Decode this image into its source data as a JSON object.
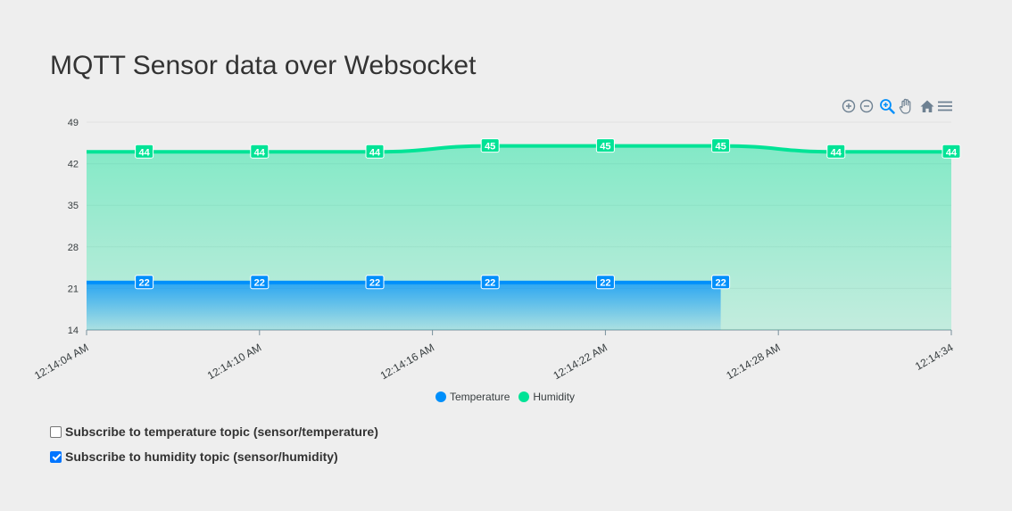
{
  "page": {
    "title": "MQTT Sensor data over Websocket"
  },
  "toolbar": {
    "icons": [
      "zoom-in-icon",
      "zoom-out-icon",
      "selection-zoom-icon",
      "pan-hand-icon",
      "home-reset-icon",
      "menu-icon"
    ],
    "active_color": "#008ffb",
    "inactive_color": "#6e8192"
  },
  "chart_data": {
    "type": "area",
    "x": [
      "12:14:05",
      "12:14:07",
      "12:14:09",
      "12:14:11",
      "12:14:13",
      "12:14:15",
      "12:14:17",
      "12:14:19",
      "12:14:21",
      "12:14:23",
      "12:14:25",
      "12:14:27",
      "12:14:29",
      "12:14:31",
      "12:14:33"
    ],
    "x_tick_labels": [
      "12:14:04 AM",
      "12:14:10 AM",
      "12:14:16 AM",
      "12:14:22 AM",
      "12:14:28 AM",
      "12:14:34"
    ],
    "ylim": [
      14,
      49
    ],
    "y_ticks": [
      14,
      21,
      28,
      35,
      42,
      49
    ],
    "grid": true,
    "legend_position": "bottom-center",
    "series": [
      {
        "name": "Temperature",
        "color": "#008ffb",
        "points": [
          {
            "x": "12:14:04",
            "y": 22
          },
          {
            "x": "12:14:06",
            "y": 22
          },
          {
            "x": "12:14:10",
            "y": 22
          },
          {
            "x": "12:14:14",
            "y": 22
          },
          {
            "x": "12:14:18",
            "y": 22
          },
          {
            "x": "12:14:22",
            "y": 22
          },
          {
            "x": "12:14:26",
            "y": 22
          }
        ],
        "labels": [
          {
            "x": "12:14:06",
            "text": "22"
          },
          {
            "x": "12:14:10",
            "text": "22"
          },
          {
            "x": "12:14:14",
            "text": "22"
          },
          {
            "x": "12:14:18",
            "text": "22"
          },
          {
            "x": "12:14:22",
            "text": "22"
          },
          {
            "x": "12:14:26",
            "text": "22"
          }
        ]
      },
      {
        "name": "Humidity",
        "color": "#00e396",
        "points": [
          {
            "x": "12:14:04",
            "y": 44
          },
          {
            "x": "12:14:06",
            "y": 44
          },
          {
            "x": "12:14:10",
            "y": 44
          },
          {
            "x": "12:14:14",
            "y": 44
          },
          {
            "x": "12:14:18",
            "y": 45
          },
          {
            "x": "12:14:22",
            "y": 45
          },
          {
            "x": "12:14:26",
            "y": 45
          },
          {
            "x": "12:14:30",
            "y": 44
          },
          {
            "x": "12:14:34",
            "y": 44
          }
        ],
        "labels": [
          {
            "x": "12:14:06",
            "text": "44"
          },
          {
            "x": "12:14:10",
            "text": "44"
          },
          {
            "x": "12:14:14",
            "text": "44"
          },
          {
            "x": "12:14:18",
            "text": "45"
          },
          {
            "x": "12:14:22",
            "text": "45"
          },
          {
            "x": "12:14:26",
            "text": "45"
          },
          {
            "x": "12:14:30",
            "text": "44"
          },
          {
            "x": "12:14:34",
            "text": "44"
          }
        ]
      }
    ]
  },
  "subscriptions": [
    {
      "label": "Subscribe to temperature topic (sensor/temperature)",
      "checked": false
    },
    {
      "label": "Subscribe to humidity topic (sensor/humidity)",
      "checked": true
    }
  ]
}
